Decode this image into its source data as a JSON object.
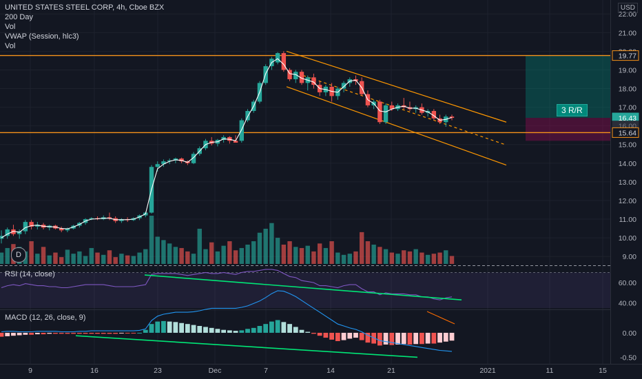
{
  "legend": {
    "title": "UNITED STATES STEEL CORP, 4h, Cboe BZX",
    "lines": [
      "200 Day",
      "Vol",
      "VWAP (Session, hlc3)",
      "Vol"
    ]
  },
  "currency": "USD",
  "rsi_label": "RSI (14, close)",
  "macd_label": "MACD (12, 26, close, 9)",
  "badge": "D",
  "rr_label": "3 R/R",
  "colors": {
    "background": "#131722",
    "up": "#26a69a",
    "down": "#ef5350",
    "level": "#f7931a",
    "channel": "#ff9800",
    "vwap": "#ffffff",
    "divergence": "#00e676",
    "rsi_line": "#7e57c2",
    "macd_line": "#2196f3",
    "signal_line": "#ff6d00",
    "target_zone": "#00897b",
    "stop_zone": "#880e4f"
  },
  "chart_data": [
    {
      "type": "candlestick",
      "x_ticks": [
        "9",
        "16",
        "23",
        "Dec",
        "7",
        "14",
        "21",
        "2021",
        "11",
        "15"
      ],
      "y_ticks": [
        "22.00",
        "21.00",
        "20.00",
        "19.00",
        "18.00",
        "17.00",
        "16.00",
        "15.00",
        "14.00",
        "13.00",
        "12.00",
        "11.00",
        "10.00",
        "9.00"
      ],
      "ylim": [
        8.6,
        22.6
      ],
      "price_tags": [
        {
          "value": 19.77,
          "label": "19.77",
          "style": "level"
        },
        {
          "value": 16.43,
          "label": "16.43",
          "style": "last"
        },
        {
          "value": 16.0,
          "label": "16.00",
          "style": "hidden"
        },
        {
          "value": 15.64,
          "label": "15.64",
          "style": "level"
        }
      ],
      "horizontal_levels": [
        19.77,
        15.64
      ],
      "candles_ohlc": [
        [
          9.95,
          10.4,
          9.7,
          10.1
        ],
        [
          10.1,
          10.55,
          9.95,
          10.45
        ],
        [
          10.45,
          10.7,
          10.1,
          10.2
        ],
        [
          10.2,
          10.45,
          9.95,
          10.35
        ],
        [
          10.35,
          10.95,
          10.2,
          10.85
        ],
        [
          10.85,
          10.95,
          10.45,
          10.6
        ],
        [
          10.6,
          10.85,
          10.45,
          10.7
        ],
        [
          10.7,
          10.8,
          10.45,
          10.55
        ],
        [
          10.55,
          10.7,
          10.4,
          10.65
        ],
        [
          10.65,
          10.7,
          10.45,
          10.5
        ],
        [
          10.5,
          10.6,
          10.3,
          10.4
        ],
        [
          10.4,
          10.55,
          10.3,
          10.5
        ],
        [
          10.5,
          10.7,
          10.45,
          10.65
        ],
        [
          10.65,
          10.85,
          10.55,
          10.8
        ],
        [
          10.8,
          11.05,
          10.7,
          11.0
        ],
        [
          11.0,
          11.1,
          10.95,
          11.05
        ],
        [
          11.05,
          11.15,
          10.95,
          11.0
        ],
        [
          11.0,
          11.2,
          10.95,
          11.1
        ],
        [
          11.1,
          11.35,
          10.95,
          11.05
        ],
        [
          11.05,
          11.15,
          10.8,
          10.9
        ],
        [
          10.9,
          11.05,
          10.8,
          11.0
        ],
        [
          11.0,
          11.1,
          10.85,
          10.95
        ],
        [
          10.95,
          11.1,
          10.9,
          11.05
        ],
        [
          11.05,
          11.25,
          10.95,
          11.2
        ],
        [
          11.2,
          11.4,
          11.1,
          11.35
        ],
        [
          11.35,
          13.9,
          11.3,
          13.8
        ],
        [
          13.8,
          14.1,
          13.55,
          13.95
        ],
        [
          13.95,
          14.2,
          13.8,
          14.1
        ],
        [
          14.1,
          14.25,
          13.95,
          14.15
        ],
        [
          14.15,
          14.3,
          14.0,
          14.25
        ],
        [
          14.25,
          14.3,
          14.0,
          14.1
        ],
        [
          14.1,
          14.15,
          13.9,
          14.0
        ],
        [
          14.0,
          14.6,
          13.95,
          14.5
        ],
        [
          14.5,
          14.9,
          14.4,
          14.8
        ],
        [
          14.8,
          15.3,
          14.7,
          15.2
        ],
        [
          15.2,
          15.4,
          14.95,
          15.05
        ],
        [
          15.05,
          15.3,
          14.9,
          15.25
        ],
        [
          15.25,
          15.5,
          15.1,
          15.4
        ],
        [
          15.4,
          15.45,
          15.05,
          15.2
        ],
        [
          15.2,
          15.5,
          15.1,
          15.1
        ],
        [
          15.2,
          16.4,
          15.1,
          16.3
        ],
        [
          16.3,
          16.9,
          16.2,
          16.8
        ],
        [
          16.8,
          17.4,
          16.7,
          17.3
        ],
        [
          17.3,
          18.4,
          17.2,
          18.3
        ],
        [
          18.3,
          19.3,
          18.2,
          19.2
        ],
        [
          19.2,
          19.7,
          19.0,
          19.6
        ],
        [
          19.4,
          19.95,
          19.3,
          19.9
        ],
        [
          19.9,
          20.0,
          18.9,
          19.0
        ],
        [
          19.0,
          19.1,
          18.4,
          18.5
        ],
        [
          18.5,
          19.0,
          18.3,
          18.9
        ],
        [
          18.9,
          19.0,
          18.2,
          18.3
        ],
        [
          18.3,
          18.7,
          17.9,
          18.6
        ],
        [
          18.6,
          18.8,
          18.0,
          18.2
        ],
        [
          18.2,
          18.4,
          17.6,
          17.8
        ],
        [
          17.8,
          18.2,
          17.6,
          18.1
        ],
        [
          18.1,
          18.3,
          17.3,
          17.6
        ],
        [
          17.6,
          18.1,
          17.4,
          18.0
        ],
        [
          18.0,
          18.4,
          17.8,
          18.3
        ],
        [
          18.3,
          18.6,
          18.1,
          18.5
        ],
        [
          18.5,
          18.7,
          18.2,
          18.4
        ],
        [
          18.4,
          18.6,
          17.6,
          17.7
        ],
        [
          17.7,
          17.9,
          17.0,
          17.1
        ],
        [
          17.1,
          17.4,
          16.9,
          17.3
        ],
        [
          17.3,
          17.4,
          16.1,
          16.2
        ],
        [
          16.2,
          17.2,
          16.1,
          17.1
        ],
        [
          17.1,
          17.3,
          16.8,
          16.9
        ],
        [
          16.9,
          17.2,
          16.8,
          17.1
        ],
        [
          17.1,
          17.5,
          16.9,
          17.0
        ],
        [
          17.0,
          17.3,
          16.8,
          16.9
        ],
        [
          16.9,
          17.1,
          16.7,
          17.0
        ],
        [
          17.0,
          17.2,
          16.6,
          16.7
        ],
        [
          16.7,
          16.9,
          16.5,
          16.8
        ],
        [
          16.8,
          16.9,
          16.3,
          16.4
        ],
        [
          16.4,
          16.6,
          16.1,
          16.2
        ],
        [
          16.2,
          16.6,
          15.95,
          16.5
        ],
        [
          16.5,
          16.6,
          16.3,
          16.43
        ]
      ],
      "volume": [
        20,
        28,
        35,
        30,
        22,
        40,
        18,
        30,
        15,
        20,
        12,
        25,
        18,
        22,
        14,
        28,
        20,
        16,
        24,
        12,
        18,
        15,
        14,
        20,
        26,
        85,
        48,
        42,
        36,
        30,
        28,
        22,
        18,
        62,
        26,
        38,
        22,
        32,
        40,
        24,
        28,
        34,
        40,
        55,
        62,
        72,
        46,
        34,
        40,
        30,
        28,
        32,
        22,
        36,
        28,
        40,
        20,
        16,
        18,
        22,
        56,
        40,
        34,
        30,
        26,
        20,
        18,
        24,
        22,
        26,
        20,
        16,
        18,
        20,
        24,
        14
      ],
      "vwap": [
        10.0,
        10.2,
        10.35,
        10.3,
        10.55,
        10.65,
        10.68,
        10.62,
        10.6,
        10.58,
        10.5,
        10.48,
        10.58,
        10.72,
        10.9,
        11.0,
        11.02,
        11.05,
        11.05,
        10.97,
        10.97,
        10.97,
        11.0,
        11.12,
        11.28,
        12.6,
        13.7,
        13.95,
        14.1,
        14.18,
        14.15,
        14.05,
        14.3,
        14.65,
        15.0,
        15.12,
        15.15,
        15.3,
        15.28,
        15.2,
        15.8,
        16.5,
        17.05,
        17.8,
        18.8,
        19.4,
        19.6,
        19.3,
        18.8,
        18.75,
        18.55,
        18.45,
        18.35,
        18.0,
        17.95,
        17.85,
        17.8,
        18.1,
        18.4,
        18.45,
        18.05,
        17.4,
        17.2,
        16.8,
        16.75,
        16.9,
        17.0,
        17.05,
        16.95,
        16.95,
        16.85,
        16.75,
        16.55,
        16.3,
        16.35,
        16.45
      ]
    },
    {
      "type": "line",
      "name": "RSI",
      "y_ticks": [
        "60.00",
        "40.00"
      ],
      "ylim": [
        35,
        75
      ],
      "values": [
        55,
        57,
        58,
        57,
        59,
        58,
        57,
        57,
        56,
        56,
        55,
        55,
        56,
        57,
        58,
        58,
        58,
        58,
        57,
        56,
        56,
        56,
        56,
        57,
        58,
        68,
        69,
        69,
        69,
        69,
        68,
        67,
        68,
        69,
        70,
        69,
        69,
        70,
        69,
        68,
        70,
        71,
        71,
        72,
        73,
        73,
        72,
        69,
        66,
        65,
        62,
        61,
        60,
        57,
        57,
        56,
        55,
        57,
        58,
        58,
        54,
        51,
        51,
        48,
        50,
        49,
        49,
        49,
        48,
        48,
        46,
        46,
        44,
        43,
        45,
        46
      ]
    },
    {
      "type": "bar",
      "name": "MACD",
      "y_ticks": [
        "0.00",
        "-0.50"
      ],
      "ylim": [
        -0.55,
        0.45
      ],
      "values": [
        -0.08,
        -0.07,
        -0.06,
        -0.05,
        -0.04,
        -0.04,
        -0.03,
        -0.03,
        -0.02,
        -0.02,
        -0.02,
        -0.02,
        -0.02,
        -0.02,
        -0.02,
        -0.02,
        -0.02,
        -0.02,
        -0.02,
        -0.02,
        -0.01,
        -0.01,
        -0.01,
        0.0,
        0.06,
        0.18,
        0.23,
        0.24,
        0.23,
        0.22,
        0.2,
        0.18,
        0.16,
        0.14,
        0.12,
        0.1,
        0.08,
        0.06,
        0.05,
        0.04,
        0.05,
        0.08,
        0.1,
        0.14,
        0.18,
        0.23,
        0.26,
        0.22,
        0.18,
        0.12,
        0.06,
        0.02,
        -0.02,
        -0.06,
        -0.1,
        -0.14,
        -0.17,
        -0.15,
        -0.12,
        -0.1,
        -0.15,
        -0.2,
        -0.22,
        -0.26,
        -0.24,
        -0.25,
        -0.24,
        -0.23,
        -0.24,
        -0.23,
        -0.23,
        -0.22,
        -0.22,
        -0.2,
        -0.18,
        -0.16
      ],
      "macd_line": [
        0.02,
        0.03,
        0.03,
        0.02,
        0.02,
        0.02,
        0.03,
        0.03,
        0.03,
        0.03,
        0.02,
        0.02,
        0.02,
        0.03,
        0.03,
        0.04,
        0.04,
        0.04,
        0.04,
        0.04,
        0.04,
        0.04,
        0.04,
        0.05,
        0.08,
        0.25,
        0.34,
        0.38,
        0.4,
        0.42,
        0.42,
        0.42,
        0.43,
        0.45,
        0.48,
        0.5,
        0.5,
        0.5,
        0.5,
        0.5,
        0.52,
        0.55,
        0.6,
        0.65,
        0.72,
        0.8,
        0.86,
        0.85,
        0.8,
        0.74,
        0.66,
        0.58,
        0.5,
        0.42,
        0.34,
        0.26,
        0.18,
        0.14,
        0.1,
        0.07,
        0.02,
        -0.05,
        -0.1,
        -0.16,
        -0.18,
        -0.2,
        -0.22,
        -0.24,
        -0.26,
        -0.28,
        -0.3,
        -0.32,
        -0.34,
        -0.36,
        -0.37,
        -0.38
      ]
    }
  ]
}
